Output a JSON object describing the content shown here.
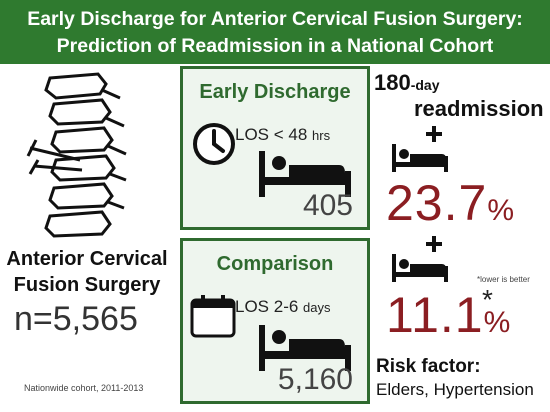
{
  "header": {
    "line1": "Early Discharge for Anterior Cervical Fusion Surgery:",
    "line2": "Prediction of Readmission in a National Cohort"
  },
  "left": {
    "title_line1": "Anterior Cervical",
    "title_line2": "Fusion Surgery",
    "n": "n=5,565",
    "footnote": "Nationwide cohort, 2011-2013"
  },
  "early": {
    "title": "Early Discharge",
    "los_main": "LOS < 48",
    "los_unit": "hrs",
    "count": "405"
  },
  "comparison": {
    "title": "Comparison",
    "los_main": "LOS 2-6",
    "los_unit": "days",
    "count": "5,160"
  },
  "readmission": {
    "label_num": "180",
    "label_small": "-day",
    "label_word": "readmission",
    "early_value": "23.7",
    "comparison_value": "11.1",
    "percent_sign": "%",
    "star": "*",
    "note": "*lower is better"
  },
  "risk": {
    "label": "Risk factor:",
    "value": "Elders, Hypertension"
  },
  "colors": {
    "header_green": "#2f7a2f",
    "panel_border": "#2f6a2f",
    "panel_fill": "#eef5ee",
    "percent_red": "#8b1e22"
  },
  "icons": [
    "spine-icon",
    "clock-icon",
    "calendar-icon",
    "bed-icon",
    "hospital-bed-icon"
  ]
}
